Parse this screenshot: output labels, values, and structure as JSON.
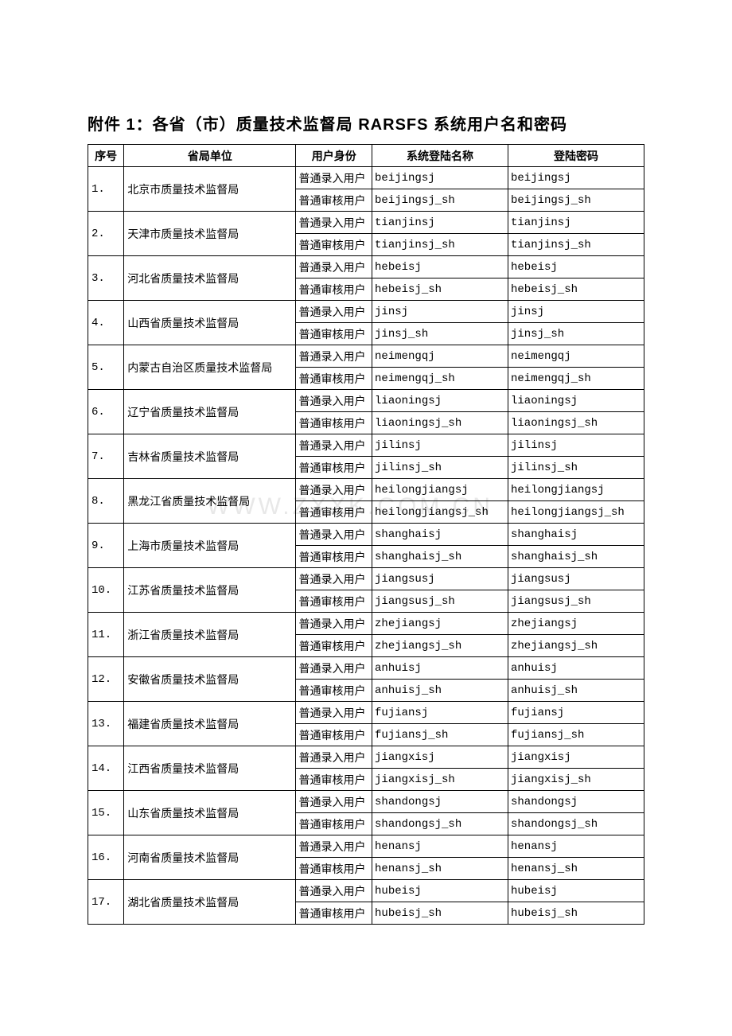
{
  "title": "附件 1：各省（市）质量技术监督局 RARSFS 系统用户名和密码",
  "columns": [
    "序号",
    "省局单位",
    "用户身份",
    "系统登陆名称",
    "登陆密码"
  ],
  "role_input": "普通录入用户",
  "role_audit": "普通审核用户",
  "watermark": "WWW.ZXXK.COM.CN",
  "rows": [
    {
      "seq": "1.",
      "unit": "北京市质量技术监督局",
      "login1": "beijingsj",
      "pass1": "beijingsj",
      "login2": "beijingsj_sh",
      "pass2": "beijingsj_sh"
    },
    {
      "seq": "2.",
      "unit": "天津市质量技术监督局",
      "login1": "tianjinsj",
      "pass1": "tianjinsj",
      "login2": "tianjinsj_sh",
      "pass2": "tianjinsj_sh"
    },
    {
      "seq": "3.",
      "unit": "河北省质量技术监督局",
      "login1": "hebeisj",
      "pass1": "hebeisj",
      "login2": "hebeisj_sh",
      "pass2": "hebeisj_sh"
    },
    {
      "seq": "4.",
      "unit": "山西省质量技术监督局",
      "login1": "jinsj",
      "pass1": "jinsj",
      "login2": "jinsj_sh",
      "pass2": "jinsj_sh"
    },
    {
      "seq": "5.",
      "unit": "内蒙古自治区质量技术监督局",
      "login1": "neimengqj",
      "pass1": "neimengqj",
      "login2": "neimengqj_sh",
      "pass2": "neimengqj_sh"
    },
    {
      "seq": "6.",
      "unit": "辽宁省质量技术监督局",
      "login1": "liaoningsj",
      "pass1": "liaoningsj",
      "login2": "liaoningsj_sh",
      "pass2": "liaoningsj_sh"
    },
    {
      "seq": "7.",
      "unit": "吉林省质量技术监督局",
      "login1": "jilinsj",
      "pass1": "jilinsj",
      "login2": "jilinsj_sh",
      "pass2": "jilinsj_sh"
    },
    {
      "seq": "8.",
      "unit": "黑龙江省质量技术监督局",
      "login1": "heilongjiangsj",
      "pass1": "heilongjiangsj",
      "login2": "heilongjiangsj_sh",
      "pass2": "heilongjiangsj_sh"
    },
    {
      "seq": "9.",
      "unit": "上海市质量技术监督局",
      "login1": "shanghaisj",
      "pass1": "shanghaisj",
      "login2": "shanghaisj_sh",
      "pass2": "shanghaisj_sh"
    },
    {
      "seq": "10.",
      "unit": "江苏省质量技术监督局",
      "login1": "jiangsusj",
      "pass1": "jiangsusj",
      "login2": "jiangsusj_sh",
      "pass2": "jiangsusj_sh"
    },
    {
      "seq": "11.",
      "unit": "浙江省质量技术监督局",
      "login1": "zhejiangsj",
      "pass1": "zhejiangsj",
      "login2": "zhejiangsj_sh",
      "pass2": "zhejiangsj_sh"
    },
    {
      "seq": "12.",
      "unit": "安徽省质量技术监督局",
      "login1": "anhuisj",
      "pass1": "anhuisj",
      "login2": "anhuisj_sh",
      "pass2": "anhuisj_sh"
    },
    {
      "seq": "13.",
      "unit": "福建省质量技术监督局",
      "login1": "fujiansj",
      "pass1": "fujiansj",
      "login2": "fujiansj_sh",
      "pass2": "fujiansj_sh"
    },
    {
      "seq": "14.",
      "unit": "江西省质量技术监督局",
      "login1": "jiangxisj",
      "pass1": "jiangxisj",
      "login2": "jiangxisj_sh",
      "pass2": "jiangxisj_sh"
    },
    {
      "seq": "15.",
      "unit": "山东省质量技术监督局",
      "login1": "shandongsj",
      "pass1": "shandongsj",
      "login2": "shandongsj_sh",
      "pass2": "shandongsj_sh"
    },
    {
      "seq": "16.",
      "unit": "河南省质量技术监督局",
      "login1": "henansj",
      "pass1": "henansj",
      "login2": "henansj_sh",
      "pass2": "henansj_sh"
    },
    {
      "seq": "17.",
      "unit": "湖北省质量技术监督局",
      "login1": "hubeisj",
      "pass1": "hubeisj",
      "login2": "hubeisj_sh",
      "pass2": "hubeisj_sh"
    }
  ]
}
